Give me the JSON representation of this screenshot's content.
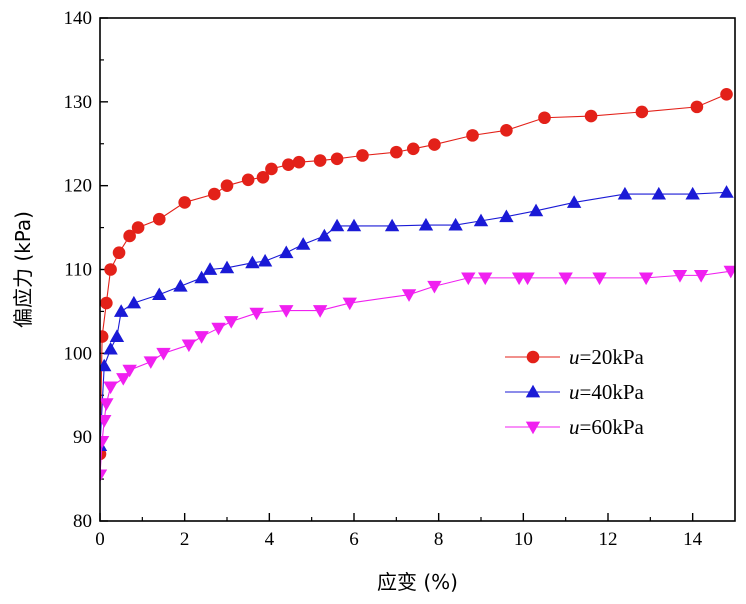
{
  "chart_data": {
    "type": "line",
    "title": "",
    "xlabel": "应变 (%)",
    "ylabel": "偏应力 (kPa)",
    "xlim": [
      0,
      15
    ],
    "ylim": [
      80,
      140
    ],
    "xticks": [
      0,
      2,
      4,
      6,
      8,
      10,
      12,
      14
    ],
    "yticks": [
      80,
      90,
      100,
      110,
      120,
      130,
      140
    ],
    "xtick_labels": [
      "0",
      "2",
      "4",
      "6",
      "8",
      "10",
      "12",
      "14"
    ],
    "ytick_labels": [
      "80",
      "90",
      "100",
      "110",
      "120",
      "130",
      "140"
    ],
    "legend_position": "center-right",
    "series": [
      {
        "name": "u=20kPa",
        "legend_italic": "u",
        "legend_rest": "=20kPa",
        "color": "#e32119",
        "marker": "circle",
        "x": [
          0,
          0.05,
          0.15,
          0.25,
          0.45,
          0.7,
          0.9,
          1.4,
          2.0,
          2.7,
          3.0,
          3.5,
          3.85,
          4.05,
          4.45,
          4.7,
          5.2,
          5.6,
          6.2,
          7.0,
          7.4,
          7.9,
          8.8,
          9.6,
          10.5,
          11.6,
          12.8,
          14.1,
          14.8
        ],
        "y": [
          88,
          102,
          106,
          110,
          112,
          114,
          115,
          116,
          118,
          119,
          120,
          120.7,
          121,
          122,
          122.5,
          122.8,
          123,
          123.2,
          123.6,
          124,
          124.4,
          124.9,
          126,
          126.6,
          128.1,
          128.3,
          128.8,
          129.4,
          130.9
        ]
      },
      {
        "name": "u=40kPa",
        "legend_italic": "u",
        "legend_rest": "=40kPa",
        "color": "#1a1ad6",
        "marker": "triangle-up",
        "x": [
          0,
          0.1,
          0.25,
          0.4,
          0.5,
          0.8,
          1.4,
          1.9,
          2.4,
          2.6,
          3.0,
          3.6,
          3.9,
          4.4,
          4.8,
          5.3,
          5.6,
          6.0,
          6.9,
          7.7,
          8.4,
          9.0,
          9.6,
          10.3,
          11.2,
          12.4,
          13.2,
          14.0,
          14.8
        ],
        "y": [
          89,
          98.5,
          100.5,
          102,
          105,
          106,
          107,
          108,
          109,
          110,
          110.2,
          110.8,
          111,
          112,
          113,
          114,
          115.2,
          115.2,
          115.2,
          115.3,
          115.3,
          115.8,
          116.3,
          117,
          118,
          119,
          119,
          119,
          119.2
        ]
      },
      {
        "name": "u=60kPa",
        "legend_italic": "u",
        "legend_rest": "=60kPa",
        "color": "#f020f0",
        "marker": "triangle-down",
        "x": [
          0,
          0.05,
          0.1,
          0.15,
          0.25,
          0.55,
          0.7,
          1.2,
          1.5,
          2.1,
          2.4,
          2.8,
          3.1,
          3.7,
          4.4,
          5.2,
          5.9,
          7.3,
          7.9,
          8.7,
          9.1,
          9.9,
          10.1,
          11.0,
          11.8,
          12.9,
          13.7,
          14.2,
          14.9
        ],
        "y": [
          85.5,
          89.5,
          92,
          94,
          96,
          97,
          98,
          99,
          100,
          101,
          102,
          103,
          103.8,
          104.8,
          105.1,
          105.1,
          106,
          107,
          108,
          109,
          109,
          109,
          109,
          109,
          109,
          109,
          109.3,
          109.3,
          109.8
        ]
      }
    ]
  }
}
